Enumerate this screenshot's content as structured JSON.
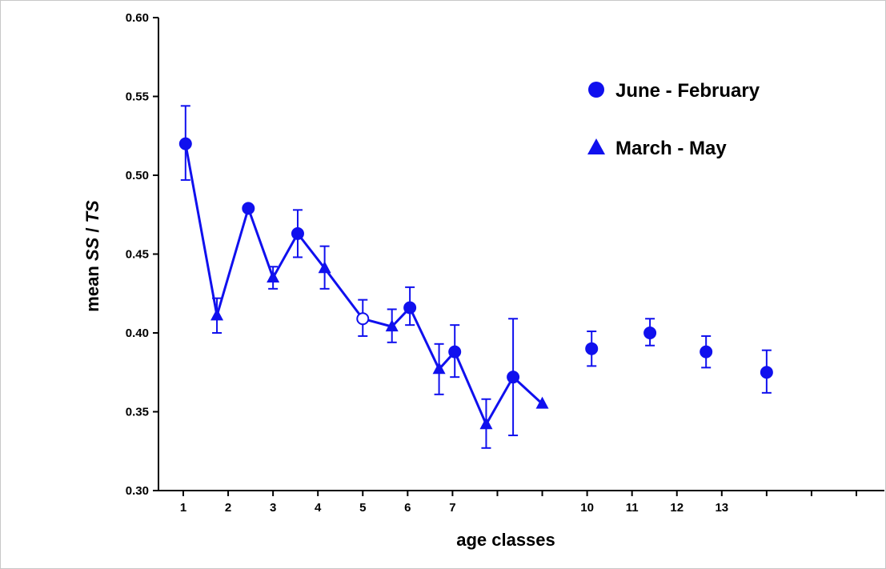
{
  "chart_data": {
    "type": "scatter",
    "xlabel": "age classes",
    "ylabel_prefix": "mean ",
    "ylabel_ss": "SS",
    "ylabel_sep": " / ",
    "ylabel_ts": "TS",
    "ylim": [
      0.3,
      0.6
    ],
    "yticks": [
      "0.30",
      "0.35",
      "0.40",
      "0.45",
      "0.50",
      "0.55",
      "0.60"
    ],
    "xlim": [
      0.5,
      16.3
    ],
    "xtick_positions": [
      1,
      2,
      3,
      4,
      5,
      6,
      7,
      8,
      9,
      10,
      11,
      12,
      13,
      14,
      15,
      16
    ],
    "xtick_labels": [
      {
        "x": 1.0,
        "label": "1"
      },
      {
        "x": 2.0,
        "label": "2"
      },
      {
        "x": 3.0,
        "label": "3"
      },
      {
        "x": 4.0,
        "label": "4"
      },
      {
        "x": 5.0,
        "label": "5"
      },
      {
        "x": 6.0,
        "label": "6"
      },
      {
        "x": 7.0,
        "label": "7"
      },
      {
        "x": 10.0,
        "label": "10"
      },
      {
        "x": 11.0,
        "label": "11"
      },
      {
        "x": 12.0,
        "label": "12"
      },
      {
        "x": 13.0,
        "label": "13"
      }
    ],
    "color": "#1010ee",
    "legend_position": "top-right",
    "series": [
      {
        "name": "June - February",
        "marker": "circle",
        "points": [
          {
            "x": 1.05,
            "y": 0.52,
            "err_low": 0.497,
            "err_high": 0.544
          },
          {
            "x": 2.45,
            "y": 0.479
          },
          {
            "x": 3.55,
            "y": 0.463,
            "err_low": 0.448,
            "err_high": 0.478
          },
          {
            "x": 5.0,
            "y": 0.409,
            "err_low": 0.398,
            "err_high": 0.421,
            "hollow": true
          },
          {
            "x": 6.05,
            "y": 0.416,
            "err_low": 0.405,
            "err_high": 0.429
          },
          {
            "x": 7.05,
            "y": 0.388,
            "err_low": 0.372,
            "err_high": 0.405
          },
          {
            "x": 8.35,
            "y": 0.372,
            "err_low": 0.335,
            "err_high": 0.409
          },
          {
            "x": 10.1,
            "y": 0.39,
            "err_low": 0.379,
            "err_high": 0.401
          },
          {
            "x": 11.4,
            "y": 0.4,
            "err_low": 0.392,
            "err_high": 0.409
          },
          {
            "x": 12.65,
            "y": 0.388,
            "err_low": 0.378,
            "err_high": 0.398
          },
          {
            "x": 14.0,
            "y": 0.375,
            "err_low": 0.362,
            "err_high": 0.389
          }
        ]
      },
      {
        "name": "March - May",
        "marker": "triangle",
        "points": [
          {
            "x": 1.75,
            "y": 0.411,
            "err_low": 0.4,
            "err_high": 0.422
          },
          {
            "x": 3.0,
            "y": 0.435,
            "err_low": 0.428,
            "err_high": 0.442
          },
          {
            "x": 4.15,
            "y": 0.441,
            "err_low": 0.428,
            "err_high": 0.455
          },
          {
            "x": 5.65,
            "y": 0.404,
            "err_low": 0.394,
            "err_high": 0.415
          },
          {
            "x": 6.7,
            "y": 0.377,
            "err_low": 0.361,
            "err_high": 0.393
          },
          {
            "x": 7.75,
            "y": 0.342,
            "err_low": 0.327,
            "err_high": 0.358
          },
          {
            "x": 9.0,
            "y": 0.355
          }
        ]
      }
    ],
    "connected_x_range": [
      1.05,
      9.0
    ]
  }
}
